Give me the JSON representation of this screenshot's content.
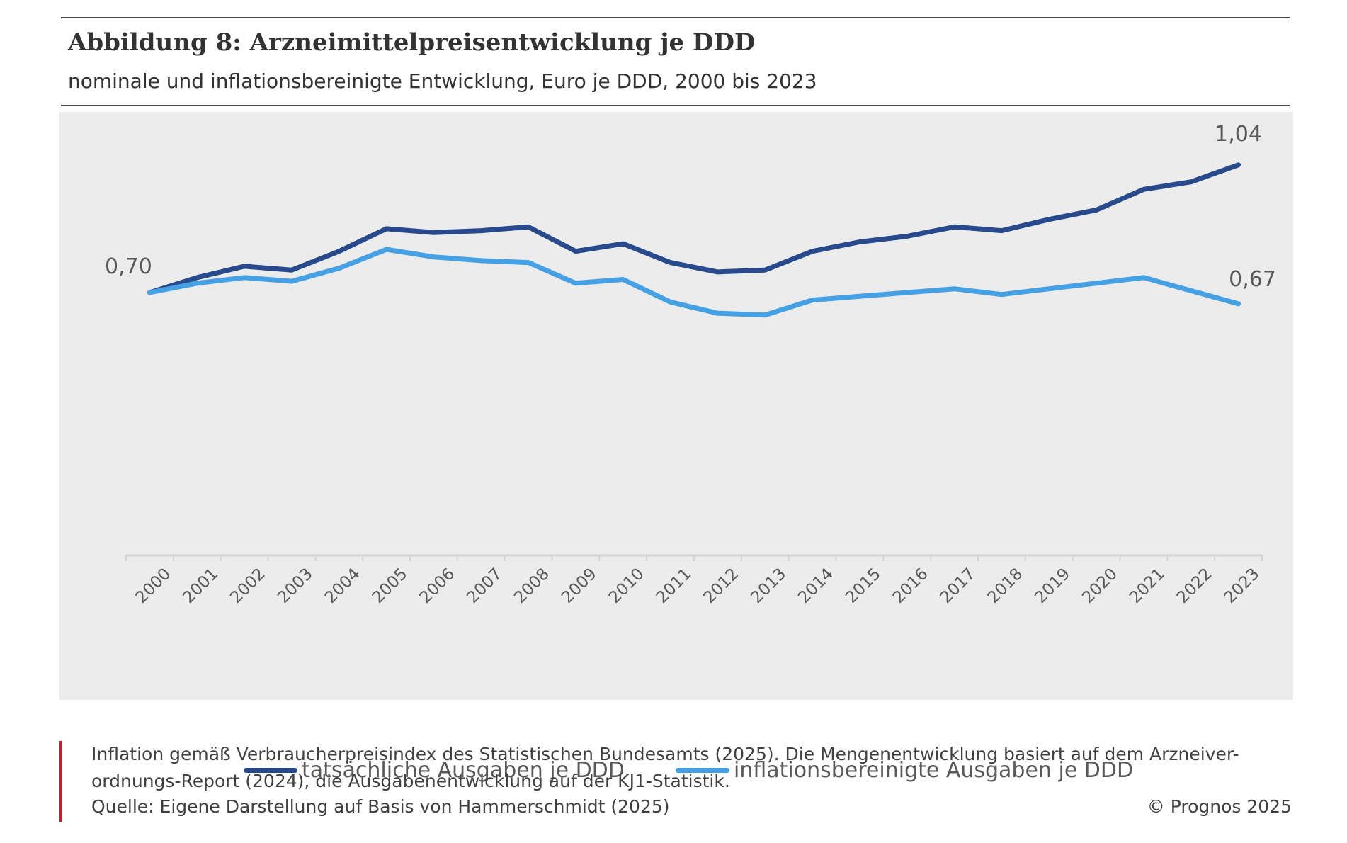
{
  "header": {
    "title": "Abbildung 8: Arzneimittelpreisentwicklung je DDD",
    "subtitle": "nominale und inflationsbereinigte Entwicklung, Euro je DDD, 2000 bis 2023"
  },
  "chart_data": {
    "type": "line",
    "title": "Abbildung 8: Arzneimittelpreisentwicklung je DDD",
    "subtitle": "nominale und inflationsbereinigte Entwicklung, Euro je DDD, 2000 bis 2023",
    "xlabel": "",
    "ylabel": "Euro je DDD",
    "ylim": [
      0,
      1.1
    ],
    "grid": false,
    "legend_position": "bottom",
    "categories": [
      "2000",
      "2001",
      "2002",
      "2003",
      "2004",
      "2005",
      "2006",
      "2007",
      "2008",
      "2009",
      "2010",
      "2011",
      "2012",
      "2013",
      "2014",
      "2015",
      "2016",
      "2017",
      "2018",
      "2019",
      "2020",
      "2021",
      "2022",
      "2023"
    ],
    "series": [
      {
        "name": "tatsächliche Ausgaben je DDD",
        "color": "#284a8c",
        "values": [
          0.7,
          0.74,
          0.77,
          0.76,
          0.81,
          0.87,
          0.86,
          0.865,
          0.875,
          0.81,
          0.83,
          0.78,
          0.755,
          0.76,
          0.81,
          0.835,
          0.85,
          0.875,
          0.865,
          0.895,
          0.92,
          0.975,
          0.995,
          1.04
        ],
        "labels": {
          "0": "0,70",
          "23": "1,04"
        }
      },
      {
        "name": "inflationsbereinigte Ausgaben je DDD",
        "color": "#46a0e4",
        "values": [
          0.7,
          0.725,
          0.74,
          0.73,
          0.765,
          0.815,
          0.795,
          0.785,
          0.78,
          0.725,
          0.735,
          0.675,
          0.645,
          0.64,
          0.68,
          0.69,
          0.7,
          0.71,
          0.695,
          0.71,
          0.725,
          0.74,
          0.705,
          0.67
        ],
        "labels": {
          "23": "0,67"
        }
      }
    ]
  },
  "notes": {
    "line1": "Inflation gemäß Verbraucherpreisindex des Statistischen Bundesamts (2025). Die Mengenentwicklung basiert auf dem Arzneiver-",
    "line2": "ordnungs-Report (2024), die Ausgabenentwicklung auf der KJ1-Statistik.",
    "source": "Quelle: Eigene Darstellung auf Basis von Hammerschmidt (2025)",
    "copyright": "© Prognos 2025"
  }
}
